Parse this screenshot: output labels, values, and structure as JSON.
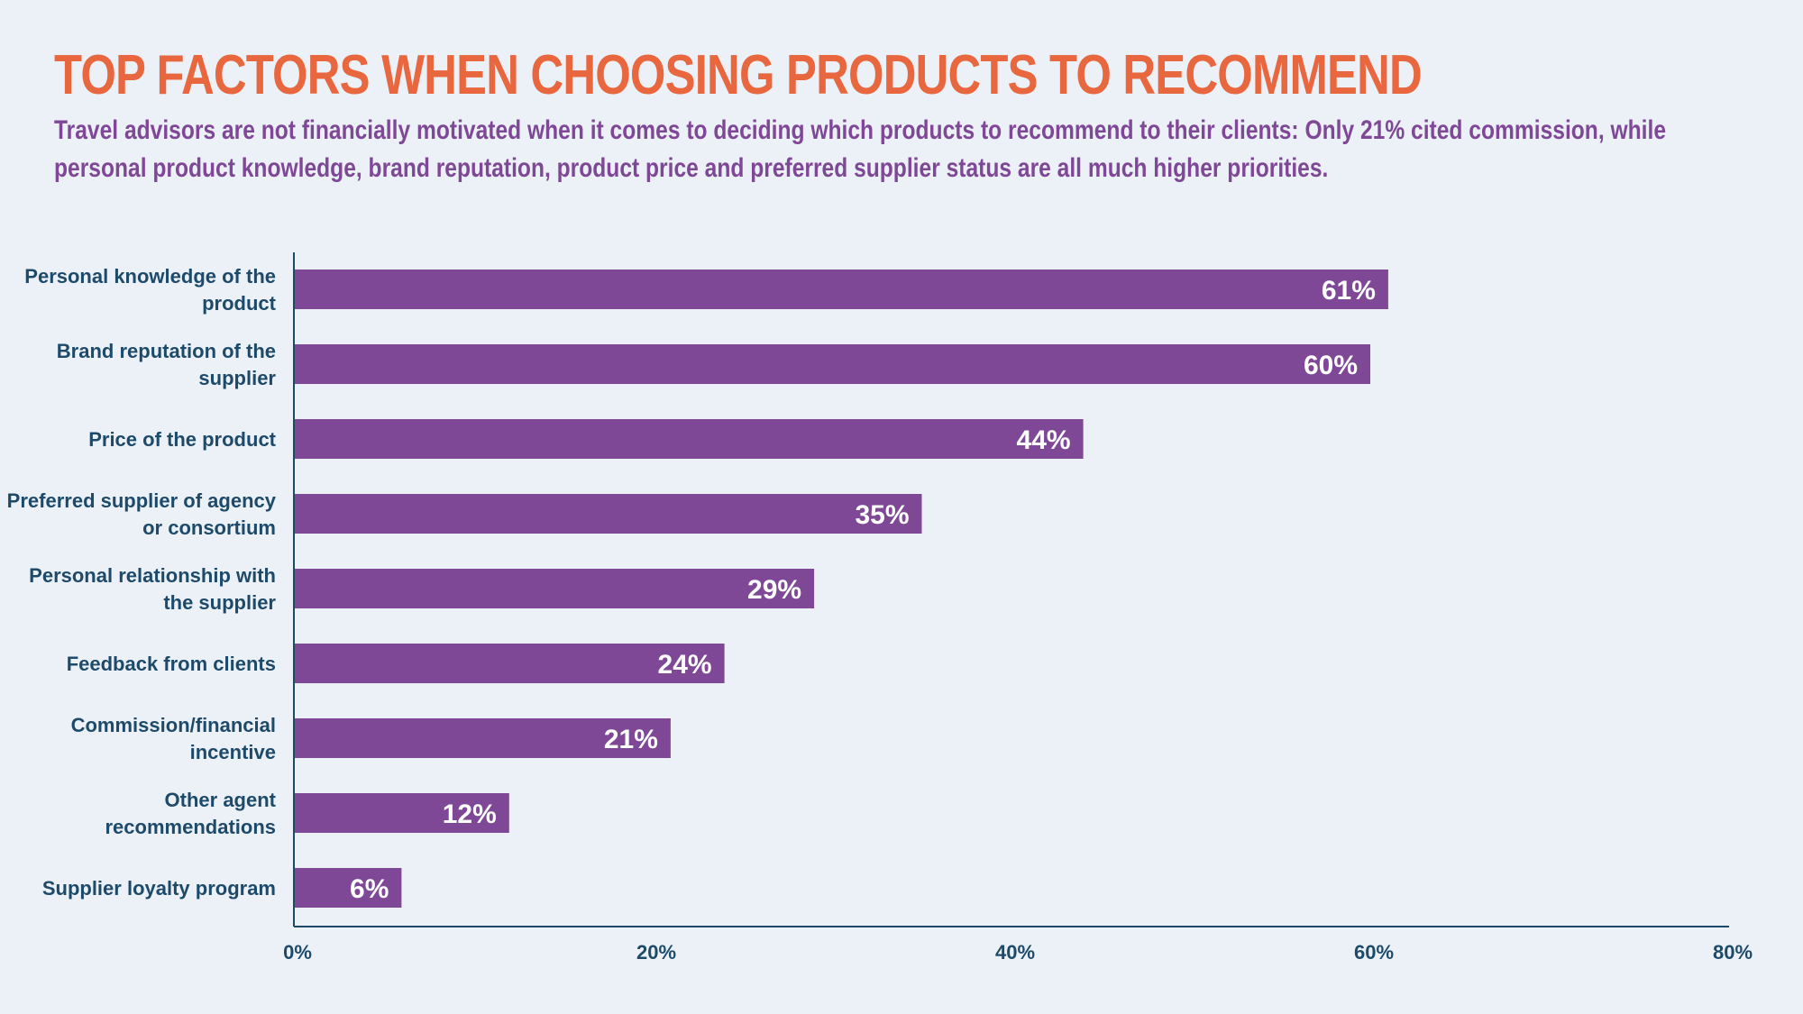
{
  "header": {
    "title": "TOP FACTORS WHEN CHOOSING PRODUCTS TO RECOMMEND",
    "subtitle": "Travel advisors are not financially motivated when it comes to deciding which products to recommend to their clients: Only 21% cited commission, while personal product knowledge, brand reputation, product price and preferred supplier status are all much higher priorities."
  },
  "chart_data": {
    "type": "bar",
    "orientation": "horizontal",
    "categories": [
      [
        "Personal knowledge of the",
        "product"
      ],
      [
        "Brand reputation of the",
        "supplier"
      ],
      [
        "Price of the product"
      ],
      [
        "Preferred supplier of agency",
        "or consortium"
      ],
      [
        "Personal relationship with",
        "the supplier"
      ],
      [
        "Feedback from clients"
      ],
      [
        "Commission/financial",
        "incentive"
      ],
      [
        "Other agent",
        "recommendations"
      ],
      [
        "Supplier loyalty program"
      ]
    ],
    "values": [
      61,
      60,
      44,
      35,
      29,
      24,
      21,
      12,
      6
    ],
    "data_labels": [
      "61%",
      "60%",
      "44%",
      "35%",
      "29%",
      "24%",
      "21%",
      "12%",
      "6%"
    ],
    "xlim": [
      0,
      80
    ],
    "ticks": [
      0,
      20,
      40,
      60,
      80
    ],
    "tick_labels": [
      "0%",
      "20%",
      "40%",
      "60%",
      "80%"
    ],
    "grid": false,
    "legend": "none",
    "bar_color": "#7f4896",
    "axis_color": "#1e4a6a",
    "title_color": "#e8673f",
    "subtitle_color": "#7f4896"
  }
}
